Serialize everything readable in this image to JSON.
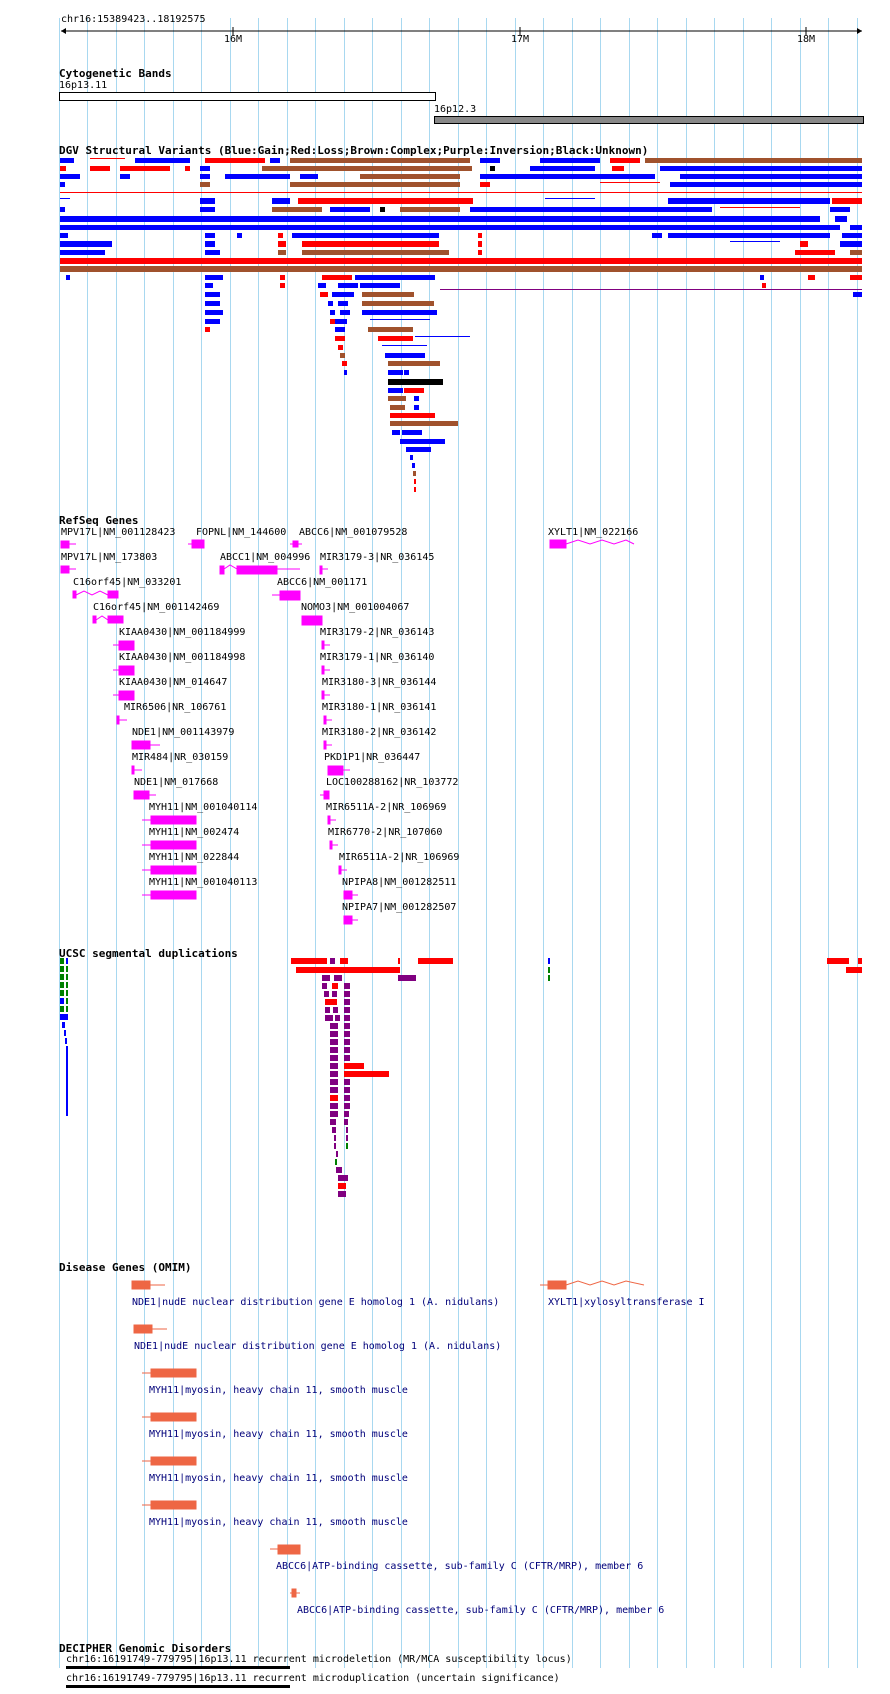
{
  "ruler": {
    "range": "chr16:15389423..18192575",
    "ticks": [
      "16M",
      "17M",
      "18M"
    ]
  },
  "cyto": {
    "title": "Cytogenetic Bands",
    "bands": [
      "16p13.11",
      "16p12.3"
    ]
  },
  "dgv": {
    "title": "DGV Structural Variants (Blue:Gain;Red:Loss;Brown:Complex;Purple:Inversion;Black:Unknown)",
    "colors": {
      "gain": "#0000ff",
      "loss": "#ff0000",
      "complex": "#a0522d",
      "inversion": "#800080",
      "unknown": "#000000"
    }
  },
  "refseq": {
    "title": "RefSeq Genes",
    "color": "#ff00ff",
    "genes": [
      "MPV17L|NM_001128423",
      "FOPNL|NM_144600",
      "ABCC6|NM_001079528",
      "XYLT1|NM_022166",
      "MPV17L|NM_173803",
      "ABCC1|NM_004996",
      "MIR3179-3|NR_036145",
      "C16orf45|NM_033201",
      "ABCC6|NM_001171",
      "C16orf45|NM_001142469",
      "NOMO3|NM_001004067",
      "KIAA0430|NM_001184999",
      "MIR3179-2|NR_036143",
      "KIAA0430|NM_001184998",
      "MIR3179-1|NR_036140",
      "KIAA0430|NM_014647",
      "MIR3180-3|NR_036144",
      "MIR6506|NR_106761",
      "MIR3180-1|NR_036141",
      "NDE1|NM_001143979",
      "MIR3180-2|NR_036142",
      "MIR484|NR_030159",
      "PKD1P1|NR_036447",
      "NDE1|NM_017668",
      "LOC100288162|NR_103772",
      "MYH11|NM_001040114",
      "MIR6511A-2|NR_106969",
      "MYH11|NM_002474",
      "MIR6770-2|NR_107060",
      "MYH11|NM_022844",
      "MIR6511A-2|NR_106969",
      "MYH11|NM_001040113",
      "NPIPA8|NM_001282511",
      "NPIPA7|NM_001282507"
    ]
  },
  "segdup": {
    "title": "UCSC segmental duplications"
  },
  "omim": {
    "title": "Disease Genes (OMIM)",
    "color": "#ee6644",
    "labels": [
      "NDE1|nudE nuclear distribution gene E homolog 1 (A. nidulans)",
      "XYLT1|xylosyltransferase I",
      "NDE1|nudE nuclear distribution gene E homolog 1 (A. nidulans)",
      "MYH11|myosin, heavy chain 11, smooth muscle",
      "MYH11|myosin, heavy chain 11, smooth muscle",
      "MYH11|myosin, heavy chain 11, smooth muscle",
      "MYH11|myosin, heavy chain 11, smooth muscle",
      "ABCC6|ATP-binding cassette, sub-family C (CFTR/MRP), member 6",
      "ABCC6|ATP-binding cassette, sub-family C (CFTR/MRP), member 6"
    ]
  },
  "decipher": {
    "title": "DECIPHER Genomic Disorders",
    "items": [
      "chr16:16191749-779795|16p13.11 recurrent microdeletion (MR/MCA susceptibility locus)",
      "chr16:16191749-779795|16p13.11 recurrent microduplication (uncertain significance)"
    ]
  }
}
